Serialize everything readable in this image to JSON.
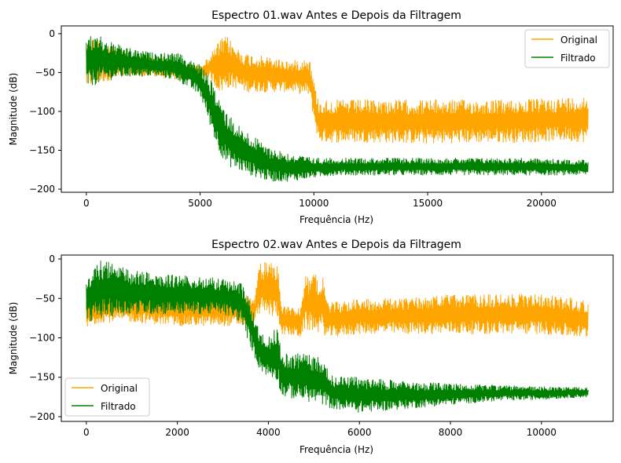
{
  "chart_data": [
    {
      "type": "line",
      "title": "Espectro 01.wav Antes e Depois da Filtragem",
      "xlabel": "Frequência (Hz)",
      "ylabel": "Magnitude (dB)",
      "xlim": [
        -1100,
        23150
      ],
      "ylim": [
        -204,
        10
      ],
      "xticks": [
        0,
        5000,
        10000,
        15000,
        20000
      ],
      "yticks": [
        0,
        -50,
        -100,
        -150,
        -200
      ],
      "legend_position": "top-right",
      "grid": false,
      "series": [
        {
          "name": "Original",
          "color": "#ffa500",
          "envelope": {
            "x": [
              0,
              500,
              1000,
              2000,
              3000,
              4000,
              5000,
              5400,
              5600,
              5800,
              6000,
              6200,
              6500,
              7000,
              8000,
              9000,
              9800,
              10000,
              10200,
              11000,
              13000,
              15000,
              17000,
              19000,
              21000,
              22050
            ],
            "upper": [
              -5,
              -5,
              -15,
              -25,
              -30,
              -35,
              -40,
              -30,
              -20,
              -10,
              -5,
              -3,
              -15,
              -25,
              -30,
              -35,
              -30,
              -60,
              -85,
              -85,
              -85,
              -85,
              -85,
              -85,
              -82,
              -80
            ],
            "lower": [
              -70,
              -65,
              -60,
              -55,
              -55,
              -60,
              -60,
              -55,
              -65,
              -75,
              -75,
              -70,
              -70,
              -75,
              -75,
              -75,
              -80,
              -110,
              -140,
              -140,
              -140,
              -142,
              -140,
              -140,
              -138,
              -140
            ]
          }
        },
        {
          "name": "Filtrado",
          "color": "#008000",
          "envelope": {
            "x": [
              0,
              500,
              1000,
              2000,
              3000,
              4000,
              5000,
              5400,
              5800,
              6200,
              6600,
              7000,
              8000,
              9000,
              10000,
              11000,
              13000,
              15000,
              17000,
              19000,
              21000,
              22050
            ],
            "upper": [
              -5,
              0,
              -10,
              -20,
              -25,
              -25,
              -40,
              -55,
              -80,
              -100,
              -115,
              -125,
              -145,
              -155,
              -160,
              -160,
              -160,
              -160,
              -160,
              -160,
              -162,
              -162
            ],
            "lower": [
              -70,
              -65,
              -60,
              -55,
              -55,
              -60,
              -80,
              -115,
              -150,
              -170,
              -175,
              -180,
              -190,
              -190,
              -185,
              -182,
              -182,
              -182,
              -182,
              -182,
              -182,
              -182
            ]
          }
        }
      ]
    },
    {
      "type": "line",
      "title": "Espectro 02.wav Antes e Depois da Filtragem",
      "xlabel": "Frequência (Hz)",
      "ylabel": "Magnitude (dB)",
      "xlim": [
        -550,
        11575
      ],
      "ylim": [
        -206,
        5
      ],
      "xticks": [
        0,
        2000,
        4000,
        6000,
        8000,
        10000
      ],
      "yticks": [
        0,
        -50,
        -100,
        -150,
        -200
      ],
      "legend_position": "bottom-left",
      "grid": false,
      "series": [
        {
          "name": "Original",
          "color": "#ffa500",
          "envelope": {
            "x": [
              0,
              300,
              1000,
              2000,
              3000,
              3500,
              3700,
              3800,
              4200,
              4300,
              4700,
              4800,
              5200,
              5300,
              6000,
              7000,
              8000,
              9000,
              10000,
              10800,
              11025
            ],
            "upper": [
              -45,
              -35,
              -40,
              -45,
              -45,
              -45,
              -50,
              -5,
              -3,
              -60,
              -60,
              -20,
              -20,
              -55,
              -50,
              -50,
              -45,
              -45,
              -45,
              -50,
              -55
            ],
            "lower": [
              -90,
              -80,
              -80,
              -85,
              -85,
              -85,
              -80,
              -70,
              -75,
              -95,
              -100,
              -90,
              -95,
              -100,
              -95,
              -95,
              -95,
              -95,
              -95,
              -100,
              -100
            ]
          }
        },
        {
          "name": "Filtrado",
          "color": "#008000",
          "envelope": {
            "x": [
              0,
              300,
              1000,
              2000,
              3000,
              3400,
              3600,
              3800,
              4000,
              4200,
              4300,
              4800,
              5200,
              5400,
              6000,
              7000,
              8000,
              9000,
              10000,
              11025
            ],
            "upper": [
              -30,
              0,
              -15,
              -20,
              -25,
              -30,
              -55,
              -90,
              -100,
              -80,
              -120,
              -120,
              -125,
              -148,
              -150,
              -155,
              -158,
              -160,
              -162,
              -163
            ],
            "lower": [
              -80,
              -75,
              -70,
              -70,
              -70,
              -80,
              -110,
              -140,
              -150,
              -155,
              -175,
              -180,
              -185,
              -190,
              -195,
              -190,
              -185,
              -180,
              -178,
              -175
            ]
          }
        }
      ]
    }
  ]
}
